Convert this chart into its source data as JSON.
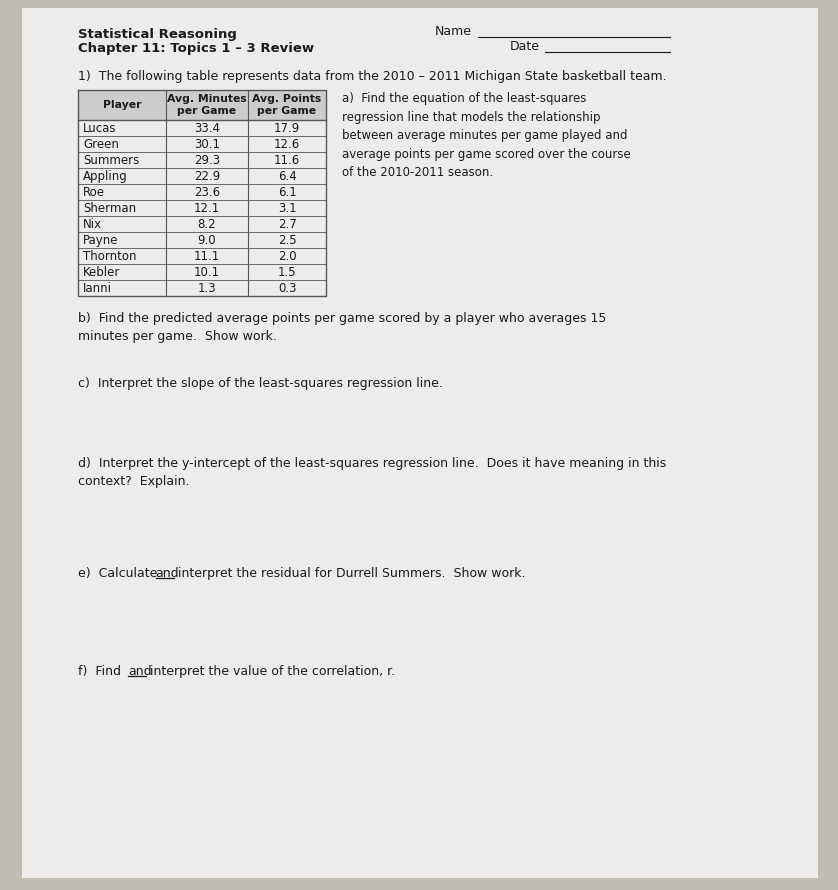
{
  "title_line1": "Statistical Reasoning",
  "title_line2": "Chapter 11: Topics 1 – 3 Review",
  "name_label": "Name",
  "date_label": "Date",
  "question1": "1)  The following table represents data from the 2010 – 2011 Michigan State basketball team.",
  "table_headers": [
    "Player",
    "Avg. Minutes\nper Game",
    "Avg. Points\nper Game"
  ],
  "table_data": [
    [
      "Lucas",
      "33.4",
      "17.9"
    ],
    [
      "Green",
      "30.1",
      "12.6"
    ],
    [
      "Summers",
      "29.3",
      "11.6"
    ],
    [
      "Appling",
      "22.9",
      "6.4"
    ],
    [
      "Roe",
      "23.6",
      "6.1"
    ],
    [
      "Sherman",
      "12.1",
      "3.1"
    ],
    [
      "Nix",
      "8.2",
      "2.7"
    ],
    [
      "Payne",
      "9.0",
      "2.5"
    ],
    [
      "Thornton",
      "11.1",
      "2.0"
    ],
    [
      "Kebler",
      "10.1",
      "1.5"
    ],
    [
      "Ianni",
      "1.3",
      "0.3"
    ]
  ],
  "part_a": "a)  Find the equation of the least-squares\nregression line that models the relationship\nbetween average minutes per game played and\naverage points per game scored over the course\nof the 2010-2011 season.",
  "part_b": "b)  Find the predicted average points per game scored by a player who averages 15\nminutes per game.  Show work.",
  "part_c": "c)  Interpret the slope of the least-squares regression line.",
  "part_d": "d)  Interpret the y-intercept of the least-squares regression line.  Does it have meaning in this\ncontext?  Explain.",
  "part_e_pre": "e)  Calculate ",
  "part_e_and": "and",
  "part_e_post": " interpret the residual for Durrell Summers.  Show work.",
  "part_f_pre": "f)  Find ",
  "part_f_and": "and",
  "part_f_post": " interpret the value of the correlation, r.",
  "bg_color": "#bfbdaf",
  "paper_color": "#eeecea",
  "table_header_bg": "#ceccca",
  "table_line_color": "#555555",
  "text_color": "#1a1a1a",
  "font_size_title": 9.5,
  "font_size_body": 9.0,
  "font_size_table": 8.5
}
